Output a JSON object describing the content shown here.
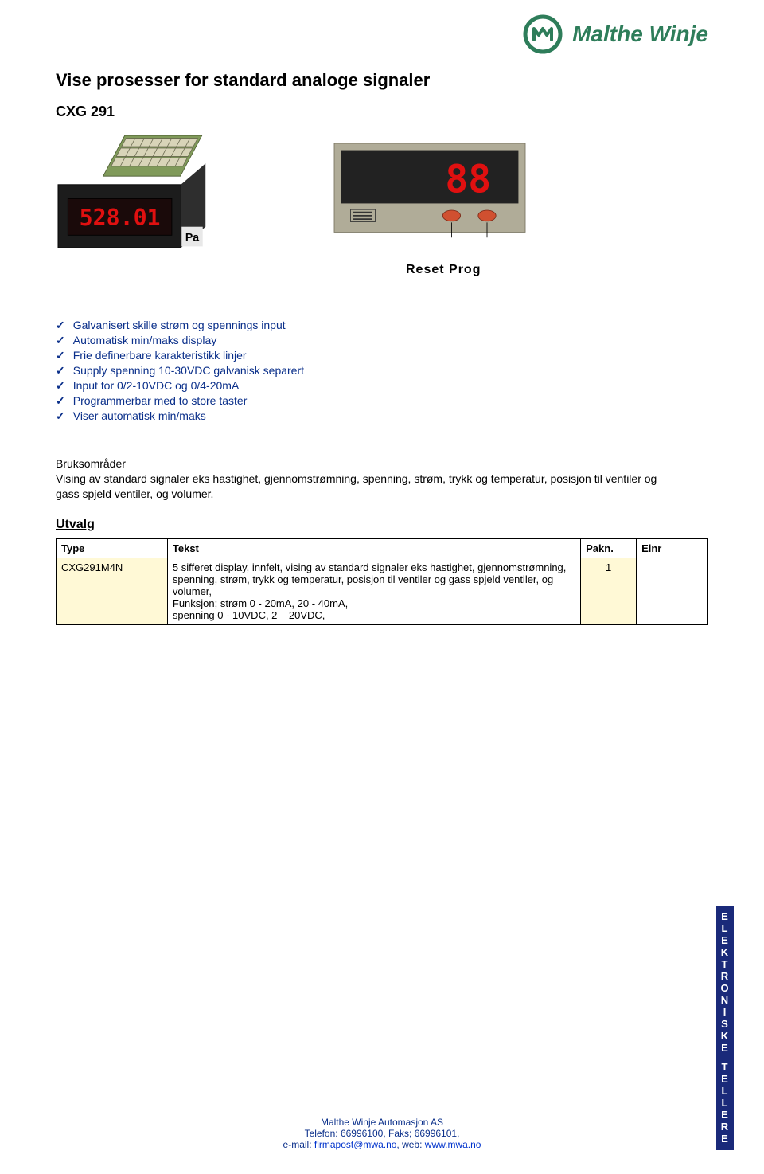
{
  "brand": {
    "name": "Malthe Winje",
    "logo_color": "#2e7d5a"
  },
  "title": "Vise prosesser for standard analoge signaler",
  "model": "CXG 291",
  "reset_prog_label": "Reset  Prog",
  "features": [
    "Galvanisert skille strøm og spennings input",
    "Automatisk min/maks display",
    "Frie definerbare karakteristikk linjer",
    "Supply spenning 10-30VDC galvanisk separert",
    "Input for 0/2-10VDC og 0/4-20mA",
    "Programmerbar med to store taster",
    "Viser automatisk min/maks"
  ],
  "bruk_heading": "Bruksområder",
  "bruk_body": "Vising av standard signaler eks hastighet, gjennomstrømning, spenning, strøm, trykk og temperatur, posisjon til ventiler og gass spjeld ventiler, og volumer.",
  "utvalg_heading": "Utvalg",
  "utvalg_table": {
    "columns": [
      "Type",
      "Tekst",
      "Pakn.",
      "Elnr"
    ],
    "row": {
      "type": "CXG291M4N",
      "tekst": "5 sifferet display, innfelt, vising av standard signaler eks hastighet, gjennomstrømning, spenning, strøm, trykk og temperatur, posisjon til ventiler og gass spjeld ventiler, og volumer,\nFunksjon; strøm 0 - 20mA, 20 - 40mA,\nspenning 0 - 10VDC, 2 – 20VDC,",
      "pakn": "1",
      "elnr": ""
    },
    "highlight_bg": "#fff9d6"
  },
  "footer": {
    "line1": "Malthe Winje Automasjon AS",
    "line2": "Telefon: 66996100, Faks; 66996101,",
    "line3_prefix": "e-mail: ",
    "email": "firmapost@mwa.no",
    "line3_mid": ", web: ",
    "web": "www.mwa.no"
  },
  "side_tab": {
    "word1": "ELEKTRONISKE",
    "word2": "TELLERE",
    "bg": "#1a2a7a",
    "fg": "#ffffff"
  },
  "device_figure": {
    "body_color": "#2e2e2e",
    "pcb_color": "#809a5a",
    "display_bg": "#1a0a0a",
    "display_fg": "#e01010",
    "display_text": "528.01",
    "unit_label": "Pa"
  },
  "panel_figure": {
    "panel_bg": "#222222",
    "bezel_bg": "#b0ac98",
    "display_fg": "#e01010",
    "display_text": "88",
    "btn_color": "#d05030"
  },
  "colors": {
    "feature_text": "#0a2f8a",
    "body_text": "#000000",
    "link": "#0033cc"
  }
}
